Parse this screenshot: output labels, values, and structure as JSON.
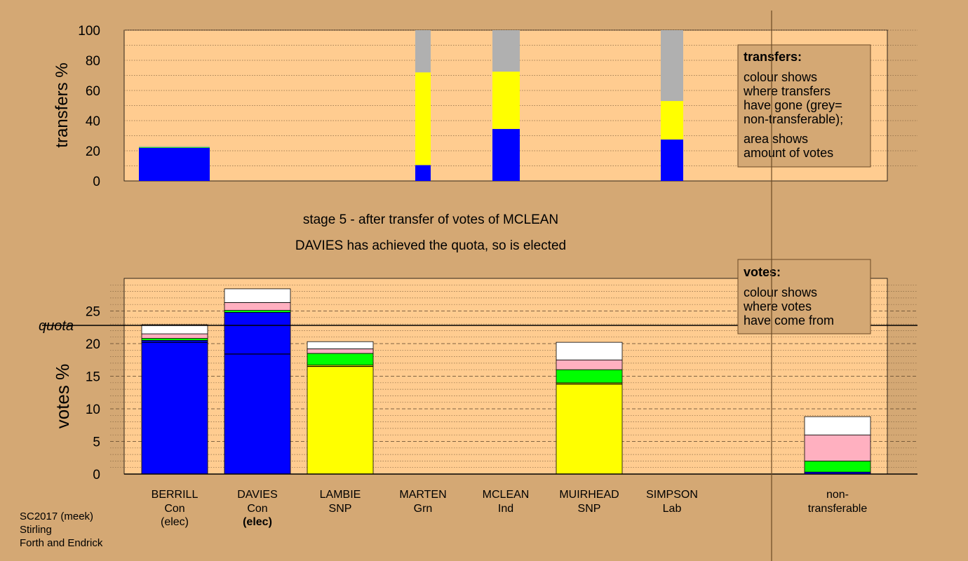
{
  "chart_data": [
    {
      "type": "bar",
      "panel": "transfers",
      "ylabel": "transfers %",
      "ylim": [
        0,
        100
      ],
      "yticks": [
        0,
        20,
        40,
        60,
        80,
        100
      ],
      "categories": [
        "BERRILL",
        "MARTEN",
        "MCLEAN",
        "SIMPSON"
      ],
      "series": [
        {
          "color": "#0000ff",
          "values": [
            22.0,
            10.5,
            34.5,
            27.5
          ]
        },
        {
          "color": "#ffff00",
          "values": [
            0,
            61.5,
            38.0,
            25.5
          ]
        },
        {
          "color": "#00ff00",
          "values": [
            0.5,
            0,
            0,
            0
          ]
        },
        {
          "color": "#ffb0c0",
          "values": [
            0.3,
            0,
            0,
            0
          ]
        },
        {
          "color": "#b0b0b0",
          "values": [
            0.2,
            28.0,
            27.5,
            47.0
          ]
        }
      ],
      "legend": {
        "title": "transfers:",
        "lines1": [
          "colour shows",
          "where transfers",
          "have gone (grey=",
          "non-transferable);"
        ],
        "lines2": [
          "area shows",
          "amount of votes"
        ]
      }
    },
    {
      "type": "bar",
      "panel": "votes",
      "ylabel": "votes %",
      "ylim": [
        0,
        30
      ],
      "yticks": [
        0,
        5,
        10,
        15,
        20,
        25
      ],
      "quota": 22.8,
      "quota_label": "quota",
      "categories": [
        "BERRILL",
        "DAVIES",
        "LAMBIE",
        "MARTEN",
        "MCLEAN",
        "MUIRHEAD",
        "SIMPSON",
        "non-transferable"
      ],
      "series": [
        {
          "color": "#0000ff",
          "values": [
            20.5,
            24.8,
            0,
            0,
            0,
            0,
            0,
            0.3
          ]
        },
        {
          "color": "#ffff00",
          "values": [
            0,
            0,
            16.7,
            0,
            0,
            14.0,
            0,
            0
          ]
        },
        {
          "color": "#00ff00",
          "values": [
            0.3,
            0.3,
            1.8,
            0,
            0,
            2.0,
            0,
            1.7
          ]
        },
        {
          "color": "#ffb0c0",
          "values": [
            0.7,
            1.2,
            0.7,
            0,
            0,
            1.5,
            0,
            4.0
          ]
        },
        {
          "color": "#ffffff",
          "values": [
            1.4,
            2.1,
            1.1,
            0,
            0,
            2.7,
            0,
            2.8
          ]
        }
      ],
      "first_pref_lines": [
        20.2,
        18.4,
        16.5,
        0,
        0,
        13.8,
        0,
        0
      ],
      "legend": {
        "title": "votes:",
        "lines": [
          "colour shows",
          "where votes",
          "have come from"
        ]
      }
    }
  ],
  "candidates": [
    {
      "name": "BERRILL",
      "party": "Con",
      "status": "(elec)",
      "status_bold": false
    },
    {
      "name": "DAVIES",
      "party": "Con",
      "status": "(elec)",
      "status_bold": true
    },
    {
      "name": "LAMBIE",
      "party": "SNP",
      "status": "",
      "status_bold": false
    },
    {
      "name": "MARTEN",
      "party": "Grn",
      "status": "",
      "status_bold": false
    },
    {
      "name": "MCLEAN",
      "party": "Ind",
      "status": "",
      "status_bold": false
    },
    {
      "name": "MUIRHEAD",
      "party": "SNP",
      "status": "",
      "status_bold": false
    },
    {
      "name": "SIMPSON",
      "party": "Lab",
      "status": "",
      "status_bold": false
    },
    {
      "name": "non-",
      "party": "transferable",
      "status": "",
      "status_bold": false
    }
  ],
  "stage_text": "stage 5 - after transfer of votes of MCLEAN",
  "status_text": "DAVIES has achieved the quota, so is elected",
  "footer": [
    "SC2017 (meek)",
    "Stirling",
    "Forth and Endrick"
  ],
  "colors": {
    "background": "#d4a874",
    "plot": "#ffcc90",
    "panel_border": "#8b5a2b"
  }
}
